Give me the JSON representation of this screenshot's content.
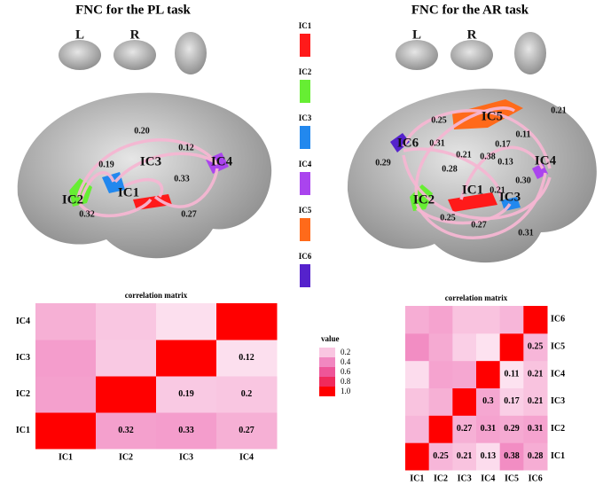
{
  "panels": [
    {
      "title": "FNC for the PL task",
      "views": [
        "L",
        "R"
      ],
      "ic_labels": [
        "IC1",
        "IC2",
        "IC3",
        "IC4"
      ],
      "edge_labels": [
        "0.20",
        "0.12",
        "0.19",
        "0.33",
        "0.32",
        "0.27"
      ]
    },
    {
      "title": "FNC for the AR task",
      "views": [
        "L",
        "R"
      ],
      "ic_labels": [
        "IC1",
        "IC2",
        "IC3",
        "IC4",
        "IC5",
        "IC6"
      ],
      "edge_labels": [
        "0.21",
        "0.25",
        "0.11",
        "0.31",
        "0.17",
        "0.29",
        "0.21",
        "0.38",
        "0.13",
        "0.28",
        "0.30",
        "0.21",
        "0.25",
        "0.27",
        "0.31"
      ]
    }
  ],
  "ic_legend": [
    {
      "name": "IC1",
      "color": "#ff1a1a"
    },
    {
      "name": "IC2",
      "color": "#66ee33"
    },
    {
      "name": "IC3",
      "color": "#2288ee"
    },
    {
      "name": "IC4",
      "color": "#aa44ee"
    },
    {
      "name": "IC5",
      "color": "#ff6a1a"
    },
    {
      "name": "IC6",
      "color": "#5522cc"
    }
  ],
  "colorbar": {
    "title": "value",
    "ticks": [
      0.2,
      0.4,
      0.6,
      0.8,
      {
        "value": 1,
        "label": "1.0"
      }
    ],
    "colors": [
      "#f9c6e1",
      "#f187c0",
      "#ee5598",
      "#f02a5c",
      "#ff0000"
    ]
  },
  "chart_data": [
    {
      "type": "heatmap",
      "title": "correlation matrix",
      "categories": [
        "IC1",
        "IC2",
        "IC3",
        "IC4"
      ],
      "diagonal": 1,
      "values": [
        [
          0.32,
          0.33,
          0.27
        ],
        [
          0.19,
          0.2
        ],
        [
          0.12
        ]
      ]
    },
    {
      "type": "heatmap",
      "title": "correlation matrix",
      "categories": [
        "IC1",
        "IC2",
        "IC3",
        "IC4",
        "IC5",
        "IC6"
      ],
      "diagonal": 1,
      "values": [
        [
          0.25,
          0.21,
          0.13,
          0.38,
          0.28
        ],
        [
          0.27,
          0.31,
          0.29,
          0.31
        ],
        [
          0.3,
          0.17,
          0.21
        ],
        [
          0.11,
          0.21
        ],
        [
          0.25
        ]
      ]
    }
  ]
}
